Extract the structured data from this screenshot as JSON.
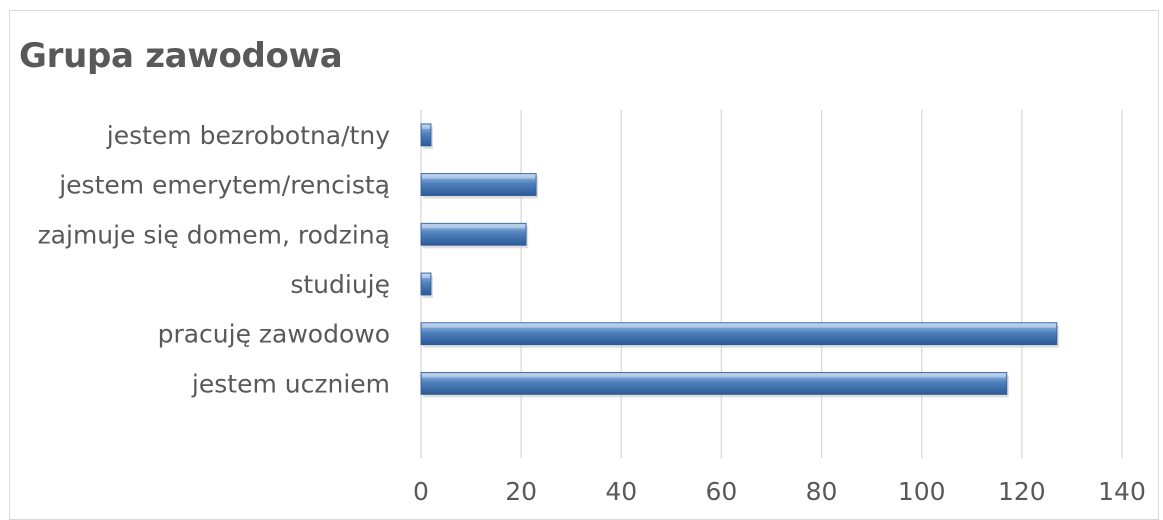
{
  "chart_data": {
    "type": "bar",
    "orientation": "horizontal",
    "title": "Grupa zawodowa",
    "xlabel": "",
    "ylabel": "",
    "categories": [
      "jestem uczniem",
      "pracuję zawodowo",
      "studiuję",
      "zajmuje się domem, rodziną",
      "jestem emerytem/rencistą",
      "jestem bezrobotna/tny"
    ],
    "values": [
      117,
      127,
      2,
      21,
      23,
      2
    ],
    "xlim": [
      0,
      140
    ],
    "xticks": [
      0,
      20,
      40,
      60,
      80,
      100,
      120,
      140
    ],
    "grid": "vertical",
    "legend": "none",
    "colors": {
      "bar": "#4f81bd",
      "bar_light": "#a7c4ea",
      "bar_dark": "#2c5a96",
      "grid": "#d9d9d9",
      "text": "#595959"
    }
  }
}
